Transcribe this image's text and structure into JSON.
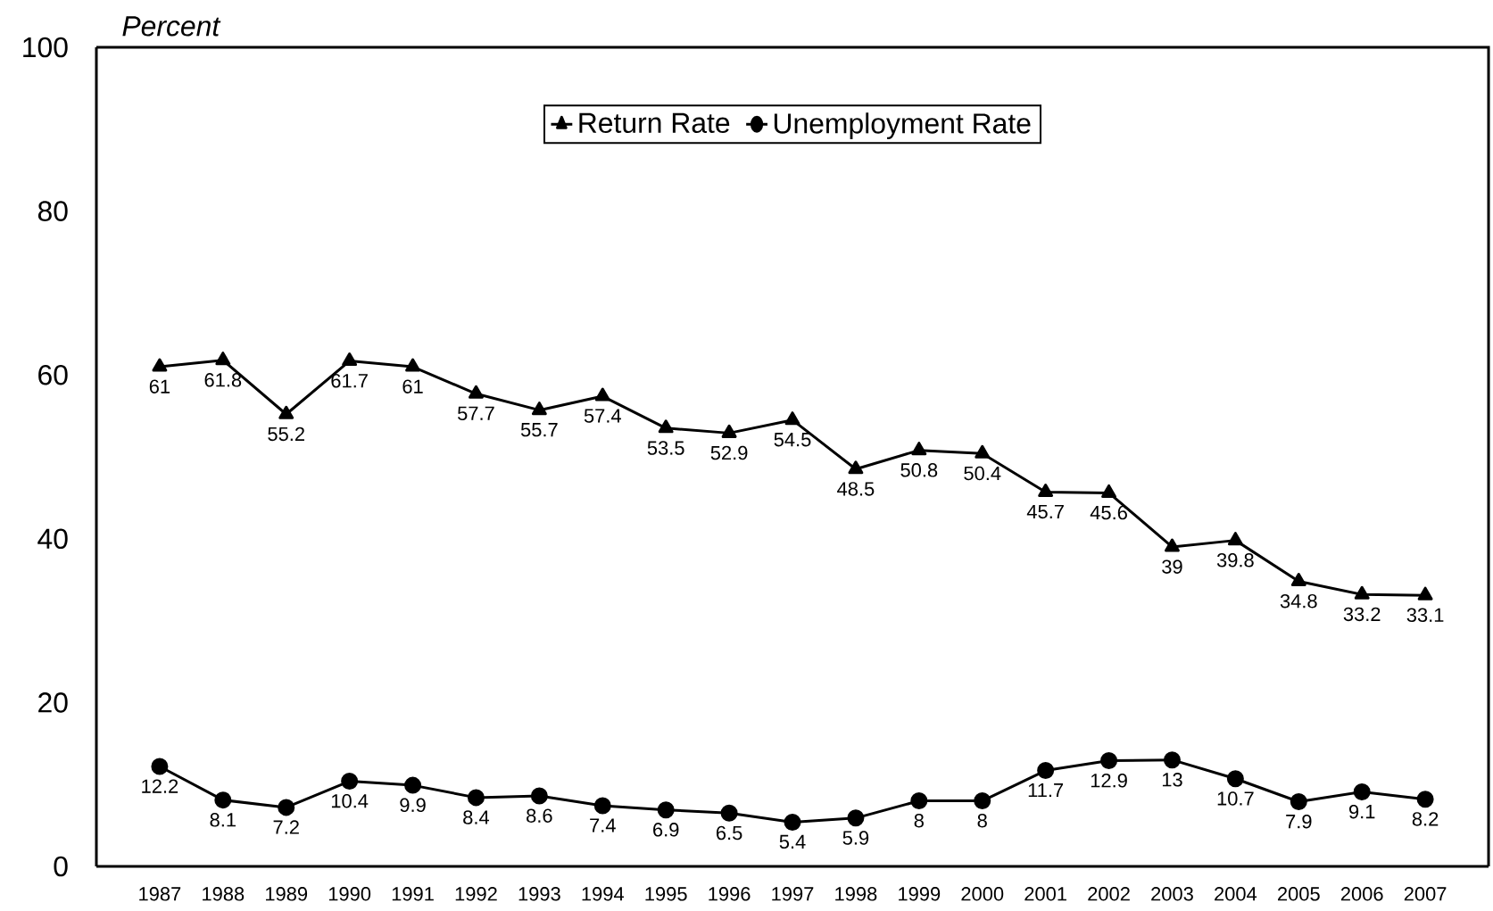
{
  "chart_data": {
    "type": "line",
    "ylabel": "Percent",
    "categories": [
      "1987",
      "1988",
      "1989",
      "1990",
      "1991",
      "1992",
      "1993",
      "1994",
      "1995",
      "1996",
      "1997",
      "1998",
      "1999",
      "2000",
      "2001",
      "2002",
      "2003",
      "2004",
      "2005",
      "2006",
      "2007"
    ],
    "series": [
      {
        "name": "Return Rate",
        "color": "#000000",
        "marker": "triangle",
        "values": [
          61,
          61.8,
          55.2,
          61.7,
          61,
          57.7,
          55.7,
          57.4,
          53.5,
          52.9,
          54.5,
          48.5,
          50.8,
          50.4,
          45.7,
          45.6,
          39,
          39.8,
          34.8,
          33.2,
          33.1
        ]
      },
      {
        "name": "Unemployment Rate",
        "color": "#000000",
        "marker": "circle",
        "values": [
          12.2,
          8.1,
          7.2,
          10.4,
          9.9,
          8.4,
          8.6,
          7.4,
          6.9,
          6.5,
          5.4,
          5.9,
          8,
          8,
          11.7,
          12.9,
          13,
          10.7,
          7.9,
          9.1,
          8.2
        ]
      }
    ],
    "ylim": [
      0,
      100
    ],
    "yticks": [
      0,
      20,
      40,
      60,
      80,
      100
    ],
    "grid": false,
    "legend": "top",
    "data_labels": true,
    "line_style": "solid"
  }
}
